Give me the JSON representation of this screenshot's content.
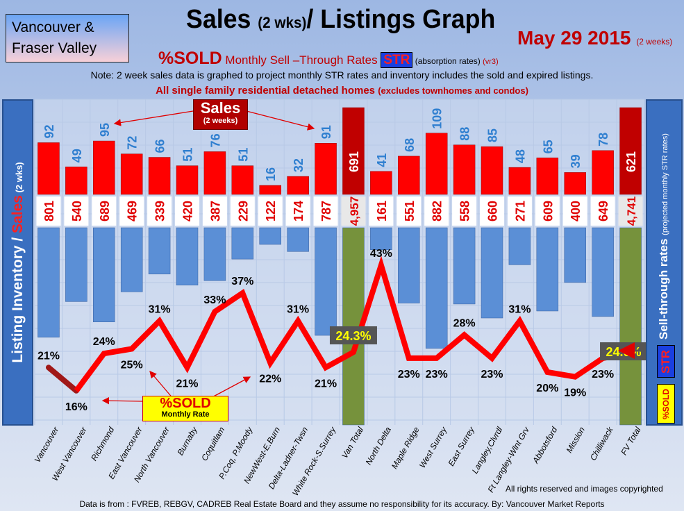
{
  "header": {
    "region_line1": "Vancouver &",
    "region_line2": "Fraser Valley",
    "title_main": "Sales ",
    "title_small": "(2 wks)",
    "title_rest": "/ Listings Graph",
    "date": "May 29 2015",
    "date_note": "(2 weeks)",
    "sub_sold": "%SOLD",
    "sub_rates": " Monthly Sell –Through Rates ",
    "sub_str": "STR",
    "sub_abs": "  (absorption rates) ",
    "sub_ver": "(vr3)",
    "note": "Note: 2 week sales data is graphed to project monthly STR rates and inventory includes the sold and expired listings.",
    "scope": "All single family residential detached homes ",
    "scope_small": "(excludes townhomes and condos)"
  },
  "left_axis": {
    "part1": "Listing Inventory / ",
    "part2": "Sales",
    "part3": " (2 wks)"
  },
  "right_axis": {
    "main": "Sell-through rates ",
    "small": "(projected monthly STR rates)",
    "str": "STR",
    "sold": "%SOLD"
  },
  "annotations": {
    "sales_title": "Sales",
    "sales_sub": "(2 weeks)",
    "sold_title": "%SOLD",
    "sold_sub": "Monthly Rate"
  },
  "footer": {
    "rights": "All rights reserved and  images copyrighted",
    "source": "Data is from : FVREB, REBGV, CADREB Real Estate Board and they assume no responsibility for its accuracy. By: Vancouver Market Reports"
  },
  "colors": {
    "sales": "#ff0000",
    "totals_sales": "#c00000",
    "listings": "#5b8fd6",
    "totals_listings": "#76923c",
    "line": "#ff0000"
  },
  "chart_data": {
    "type": "bar",
    "title": "Sales (2 wks)/ Listings Graph",
    "categories": [
      "Vancouver",
      "West Vancouver",
      "Richmond",
      "East Vancouver",
      "North Vancouver",
      "Burnaby",
      "Coquitlam",
      "P.Coq, P.Moody",
      "NewWest-E.Burn",
      "Delta-Ladner-Twsn",
      "White Rock-S.Surrey",
      "Van Total",
      "North Delta",
      "Maple Ridge",
      "West Surrey",
      "East Surrey",
      "Langley,Clvrdl",
      "Ft Langley-Wlnt Grv",
      "Abbotsford",
      "Mission",
      "Chilliwack",
      "FV Total"
    ],
    "series": [
      {
        "name": "Sales (2 weeks)",
        "values": [
          92,
          49,
          95,
          72,
          66,
          51,
          76,
          51,
          16,
          32,
          91,
          691,
          41,
          68,
          109,
          88,
          85,
          48,
          65,
          39,
          78,
          621
        ]
      },
      {
        "name": "Listing Inventory",
        "values": [
          801,
          540,
          689,
          469,
          339,
          420,
          387,
          229,
          122,
          174,
          787,
          4957,
          161,
          551,
          882,
          558,
          660,
          271,
          609,
          400,
          649,
          4741
        ]
      },
      {
        "name": "%SOLD Monthly Rate",
        "type": "line",
        "values": [
          21,
          16,
          24,
          25,
          31,
          21,
          33,
          37,
          22,
          31,
          21,
          24.3,
          43,
          23,
          23,
          28,
          23,
          31,
          20,
          19,
          23,
          24.0
        ]
      }
    ],
    "sales_labels": [
      "92",
      "49",
      "95",
      "72",
      "66",
      "51",
      "76",
      "51",
      "16",
      "32",
      "91",
      "691",
      "41",
      "68",
      "109",
      "88",
      "85",
      "48",
      "65",
      "39",
      "78",
      "621"
    ],
    "listing_labels": [
      "801",
      "540",
      "689",
      "469",
      "339",
      "420",
      "387",
      "229",
      "122",
      "174",
      "787",
      "4,957",
      "161",
      "551",
      "882",
      "558",
      "660",
      "271",
      "609",
      "400",
      "649",
      "4,741"
    ],
    "pct_labels": [
      "21%",
      "16%",
      "24%",
      "25%",
      "31%",
      "21%",
      "33%",
      "37%",
      "22%",
      "31%",
      "21%",
      "24.3%",
      "43%",
      "23%",
      "23%",
      "28%",
      "23%",
      "31%",
      "20%",
      "19%",
      "23%",
      "24.0%"
    ],
    "totals_indices": [
      11,
      21
    ]
  }
}
